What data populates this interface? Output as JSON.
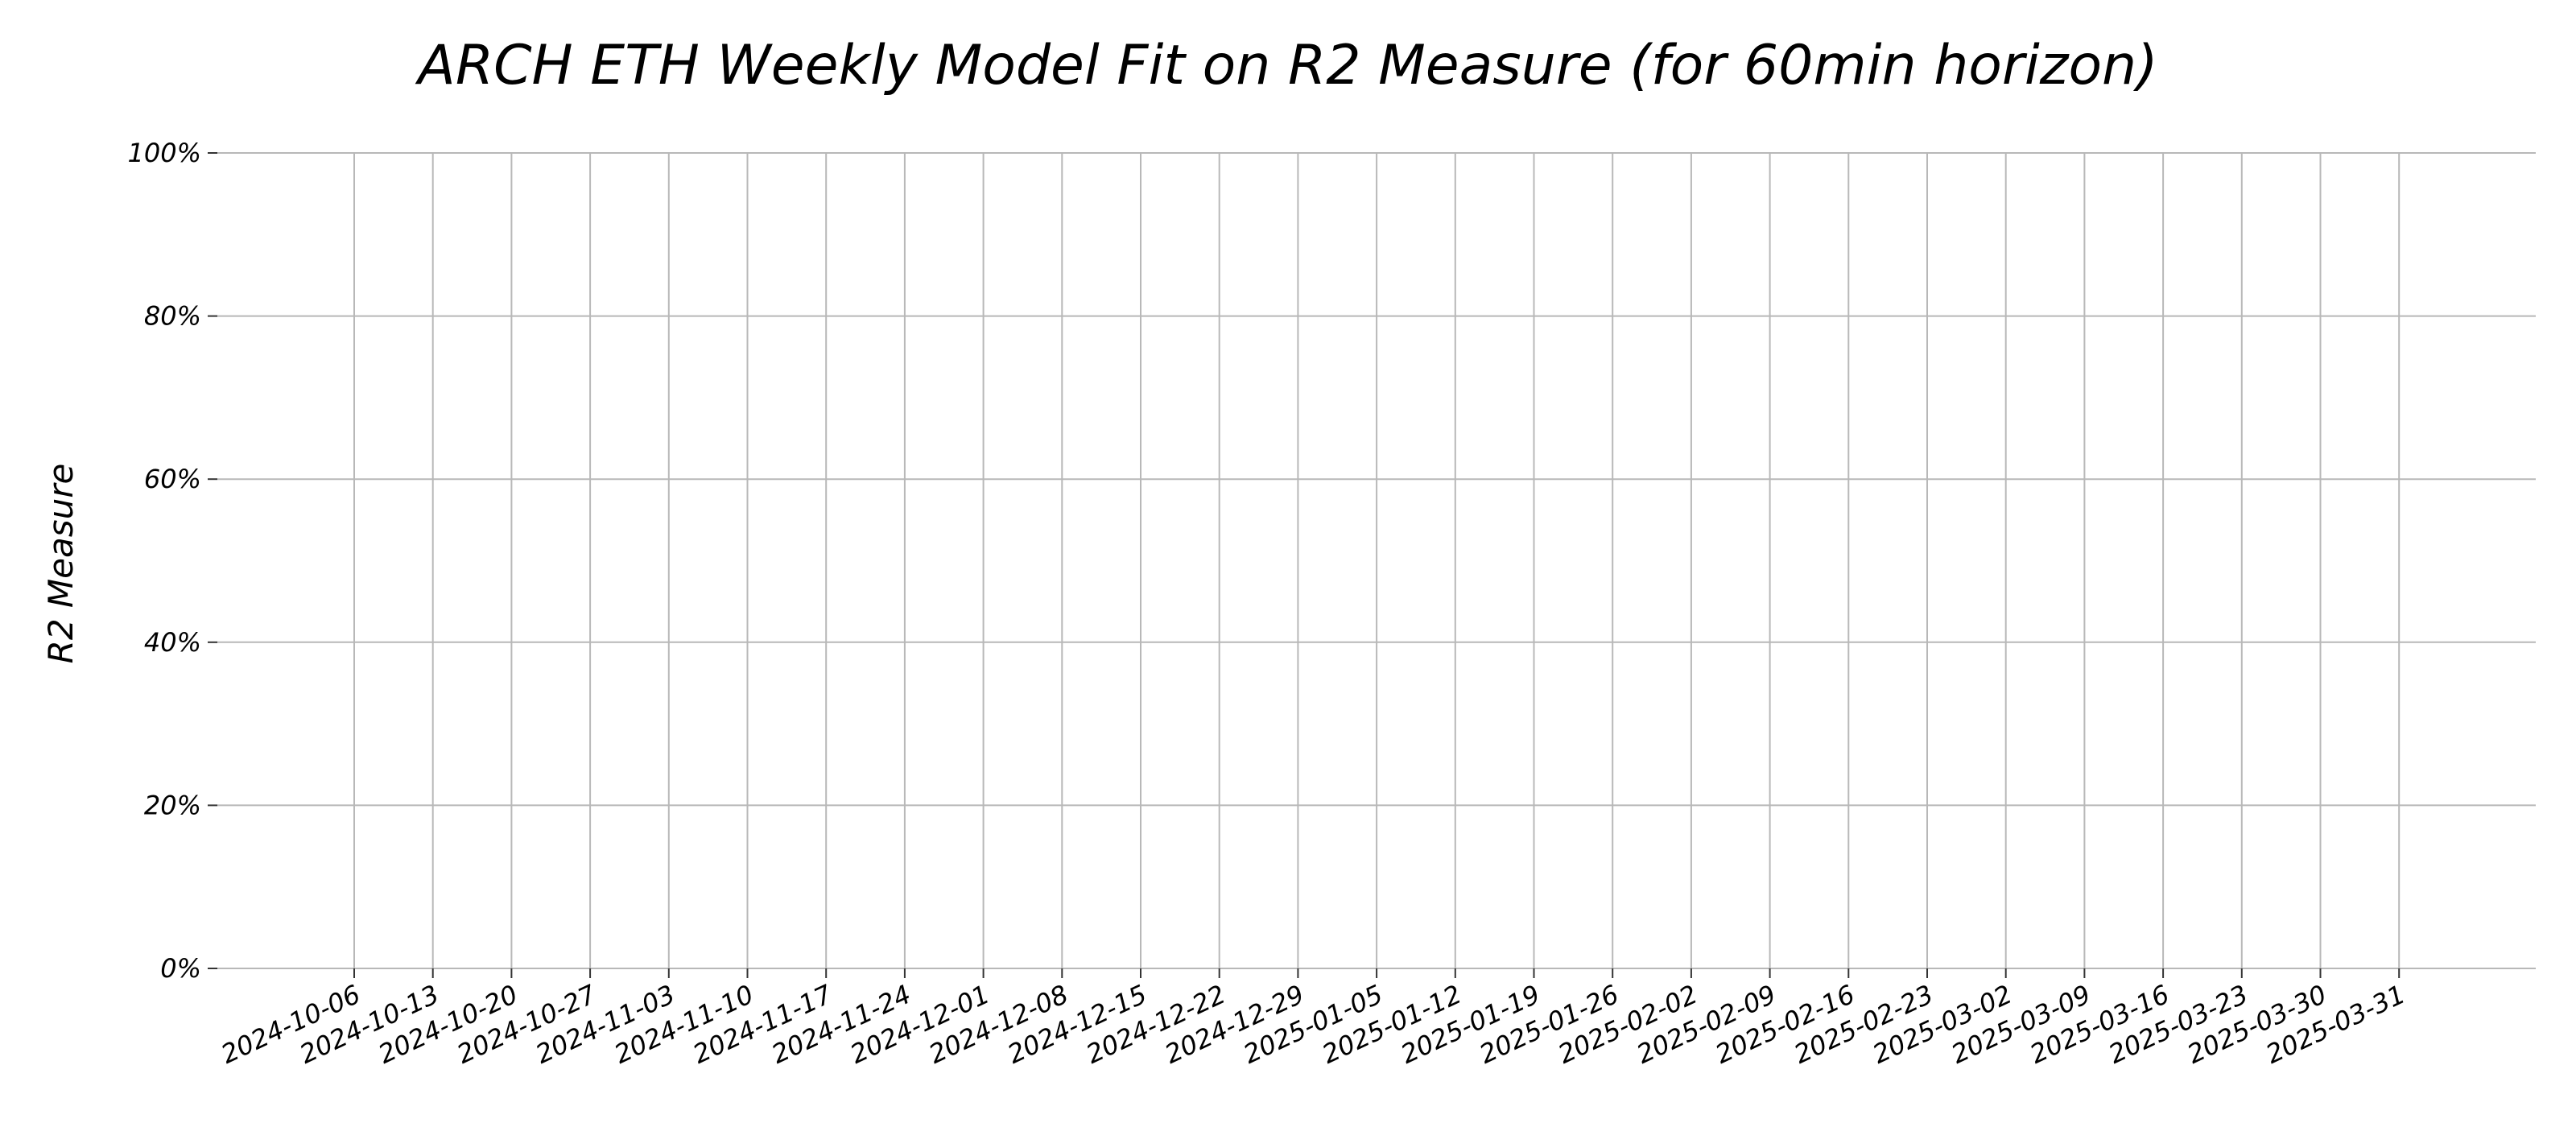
{
  "chart_data": {
    "type": "bar",
    "title": "ARCH ETH Weekly Model Fit on R2 Measure (for 60min horizon)",
    "xlabel": "",
    "ylabel": "R2 Measure",
    "categories": [
      "2024-10-06",
      "2024-10-13",
      "2024-10-20",
      "2024-10-27",
      "2024-11-03",
      "2024-11-10",
      "2024-11-17",
      "2024-11-24",
      "2024-12-01",
      "2024-12-08",
      "2024-12-15",
      "2024-12-22",
      "2024-12-29",
      "2025-01-05",
      "2025-01-12",
      "2025-01-19",
      "2025-01-26",
      "2025-02-02",
      "2025-02-09",
      "2025-02-16",
      "2025-02-23",
      "2025-03-02",
      "2025-03-09",
      "2025-03-16",
      "2025-03-23",
      "2025-03-30",
      "2025-03-31"
    ],
    "values": [
      0,
      0,
      0,
      0,
      0,
      0,
      0,
      0,
      0,
      0,
      0,
      0,
      0,
      0,
      0,
      0,
      0,
      0,
      0,
      0,
      0,
      0,
      0,
      0,
      0,
      0,
      0
    ],
    "ylim": [
      0,
      1
    ],
    "yticks": [
      0,
      0.2,
      0.4,
      0.6,
      0.8,
      1.0
    ],
    "ytick_labels": [
      "0%",
      "20%",
      "40%",
      "60%",
      "80%",
      "100%"
    ],
    "grid": true,
    "legend": "none",
    "colors": {
      "grid": "#b8b8b8",
      "text": "#000000",
      "background": "#ffffff"
    }
  }
}
